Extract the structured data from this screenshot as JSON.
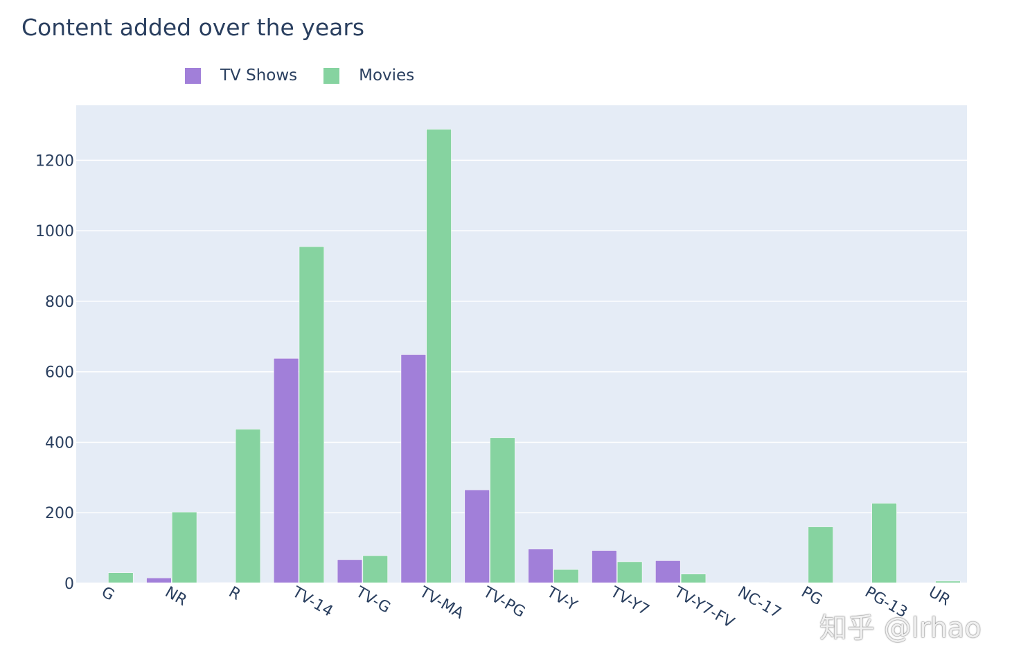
{
  "chart_data": {
    "type": "bar",
    "title": "Content added over the years",
    "xlabel": "",
    "ylabel": "",
    "ylim": [
      0,
      1356
    ],
    "yticks": [
      0,
      200,
      400,
      600,
      800,
      1000,
      1200
    ],
    "grid": true,
    "legend_position": "top-left",
    "categories": [
      "G",
      "NR",
      "R",
      "TV-14",
      "TV-G",
      "TV-MA",
      "TV-PG",
      "TV-Y",
      "TV-Y7",
      "TV-Y7-FV",
      "NC-17",
      "PG",
      "PG-13",
      "UR"
    ],
    "series": [
      {
        "name": "TV Shows",
        "color": "#a17fd9",
        "values": [
          0,
          15,
          2,
          638,
          67,
          649,
          265,
          97,
          93,
          64,
          0,
          0,
          0,
          0
        ]
      },
      {
        "name": "Movies",
        "color": "#86d3a0",
        "values": [
          30,
          202,
          437,
          955,
          78,
          1288,
          413,
          39,
          61,
          26,
          2,
          160,
          227,
          6
        ]
      }
    ]
  },
  "watermark": "知乎 @lrhao",
  "colors": {
    "plot_bg": "#e5ecf6",
    "grid": "#ffffff",
    "text": "#2a3f5f"
  }
}
